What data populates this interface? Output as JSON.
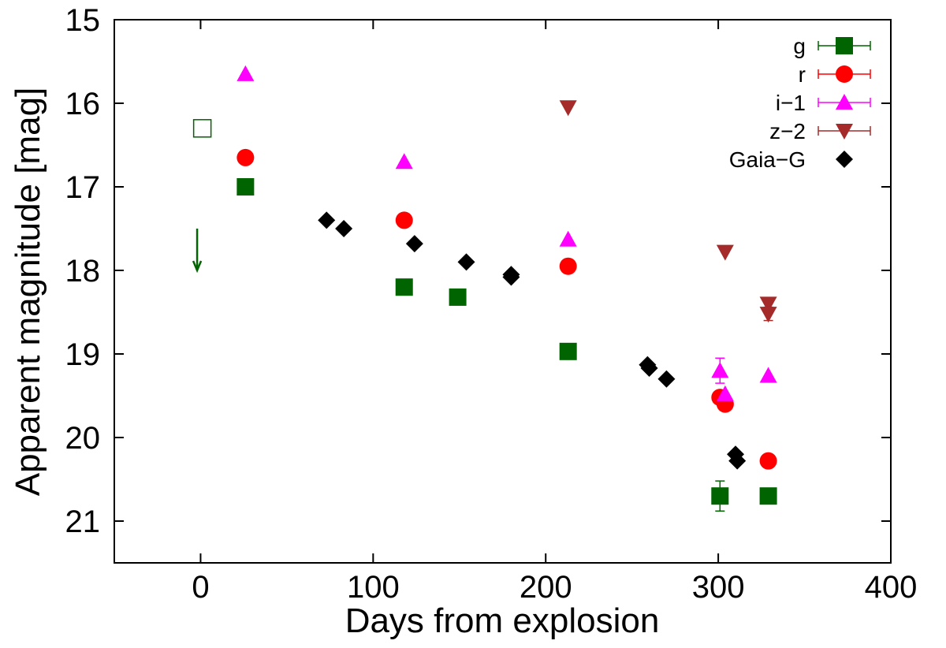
{
  "chart_data": {
    "type": "scatter",
    "title": "",
    "xlabel": "Days from explosion",
    "ylabel": "Apparent magnitude [mag]",
    "xlim": [
      -50,
      400
    ],
    "ylim": [
      21.5,
      15
    ],
    "y_inverted": true,
    "xticks": [
      0,
      100,
      200,
      300,
      400
    ],
    "yticks": [
      15,
      16,
      17,
      18,
      19,
      20,
      21
    ],
    "xtick_labels": [
      "0",
      "100",
      "200",
      "300",
      "400"
    ],
    "ytick_labels": [
      "15",
      "16",
      "17",
      "18",
      "19",
      "20",
      "21"
    ],
    "legend_position": "top-right",
    "series": [
      {
        "name": "g",
        "marker": "square",
        "color": "#006400",
        "points": [
          {
            "x": 26,
            "y": 17.0
          },
          {
            "x": 118,
            "y": 18.2
          },
          {
            "x": 149,
            "y": 18.32
          },
          {
            "x": 213,
            "y": 18.97
          },
          {
            "x": 301,
            "y": 20.7,
            "err": 0.18
          },
          {
            "x": 329,
            "y": 20.7
          }
        ]
      },
      {
        "name": "r",
        "marker": "circle",
        "color": "#ff0000",
        "points": [
          {
            "x": 26,
            "y": 16.65
          },
          {
            "x": 118,
            "y": 17.4
          },
          {
            "x": 213,
            "y": 17.95
          },
          {
            "x": 301,
            "y": 19.52
          },
          {
            "x": 304,
            "y": 19.6
          },
          {
            "x": 329,
            "y": 20.28
          }
        ]
      },
      {
        "name": "i−1",
        "marker": "triangle-up",
        "color": "#ff00ff",
        "points": [
          {
            "x": 26,
            "y": 15.65
          },
          {
            "x": 118,
            "y": 16.7
          },
          {
            "x": 213,
            "y": 17.63
          },
          {
            "x": 301,
            "y": 19.2,
            "err": 0.15
          },
          {
            "x": 304,
            "y": 19.48
          },
          {
            "x": 329,
            "y": 19.26
          }
        ]
      },
      {
        "name": "z−2",
        "marker": "triangle-down",
        "color": "#a52a2a",
        "points": [
          {
            "x": 213,
            "y": 16.05
          },
          {
            "x": 304,
            "y": 17.78
          },
          {
            "x": 329,
            "y": 18.4
          },
          {
            "x": 329,
            "y": 18.52,
            "err": 0.08
          }
        ]
      },
      {
        "name": "Gaia−G",
        "marker": "diamond",
        "color": "#000000",
        "points": [
          {
            "x": 73,
            "y": 17.4
          },
          {
            "x": 83,
            "y": 17.5
          },
          {
            "x": 124,
            "y": 17.68
          },
          {
            "x": 154,
            "y": 17.9
          },
          {
            "x": 180,
            "y": 18.05
          },
          {
            "x": 180,
            "y": 18.08
          },
          {
            "x": 259,
            "y": 19.13
          },
          {
            "x": 260,
            "y": 19.17
          },
          {
            "x": 270,
            "y": 19.3
          },
          {
            "x": 310,
            "y": 20.2
          },
          {
            "x": 311,
            "y": 20.28
          }
        ]
      }
    ],
    "annotations": [
      {
        "type": "open-square",
        "x": 1,
        "y": 16.3,
        "color": "#006400"
      },
      {
        "type": "upper-limit-arrow",
        "x": -2,
        "y_from": 17.5,
        "y_to": 18.0,
        "color": "#006400"
      }
    ]
  }
}
